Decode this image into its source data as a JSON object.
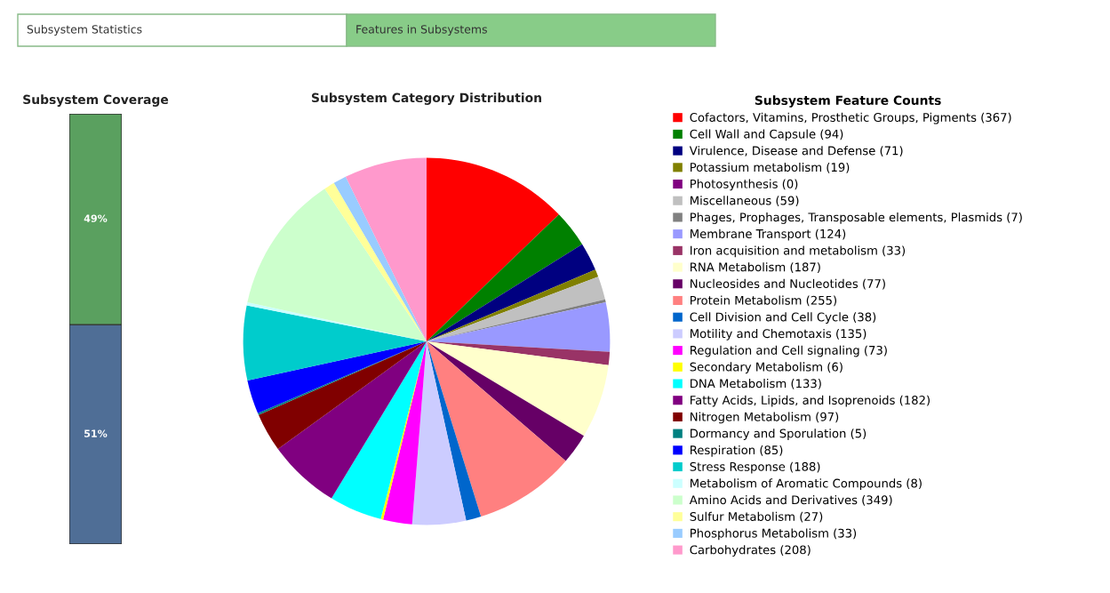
{
  "chart_data": [
    {
      "type": "bar",
      "title": "Subsystem Coverage",
      "stacked": true,
      "categories": [
        null
      ],
      "tick_labels": false,
      "series": [
        {
          "color": "#4f6e96",
          "values": [
            51
          ],
          "value_labels": [
            "51%"
          ]
        },
        {
          "color": "#5aa05f",
          "values": [
            49
          ],
          "value_labels": [
            "49%"
          ]
        }
      ],
      "annotations": [
        "Subsystem Statistics",
        "Features in Subsystems"
      ]
    },
    {
      "type": "pie",
      "title": "Subsystem Category Distribution",
      "legend_title": "Subsystem Feature Counts",
      "legend": "right",
      "categories": [
        "Cofactors, Vitamins, Prosthetic Groups, Pigments",
        "Cell Wall and Capsule",
        "Virulence, Disease and Defense",
        "Potassium metabolism",
        "Photosynthesis",
        "Miscellaneous",
        "Phages, Prophages, Transposable elements, Plasmids",
        "Membrane Transport",
        "Iron acquisition and metabolism",
        "RNA Metabolism",
        "Nucleosides and Nucleotides",
        "Protein Metabolism",
        "Cell Division and Cell Cycle",
        "Motility and Chemotaxis",
        "Regulation and Cell signaling",
        "Secondary Metabolism",
        "DNA Metabolism",
        "Fatty Acids, Lipids, and Isoprenoids",
        "Nitrogen Metabolism",
        "Dormancy and Sporulation",
        "Respiration",
        "Stress Response",
        "Metabolism of Aromatic Compounds",
        "Amino Acids and Derivatives",
        "Sulfur Metabolism",
        "Phosphorus Metabolism",
        "Carbohydrates"
      ],
      "values": [
        367,
        94,
        71,
        19,
        0,
        59,
        7,
        124,
        33,
        187,
        77,
        255,
        38,
        135,
        73,
        6,
        133,
        182,
        97,
        5,
        85,
        188,
        8,
        349,
        27,
        33,
        208
      ],
      "value_labels": [
        "(367)",
        "(94)",
        "(71)",
        "(19)",
        "(0)",
        "(59)",
        "(7)",
        "(124)",
        "(33)",
        "(187)",
        "(77)",
        "(255)",
        "(38)",
        "(135)",
        "(73)",
        "(6)",
        "(133)",
        "(182)",
        "(97)",
        "(5)",
        "(85)",
        "(188)",
        "(8)",
        "(349)",
        "(27)",
        "(33)",
        "(208)"
      ],
      "colors": [
        "#ff0000",
        "#008000",
        "#000080",
        "#808000",
        "#800080",
        "#c0c0c0",
        "#808080",
        "#9999ff",
        "#993366",
        "#ffffcc",
        "#660066",
        "#ff8080",
        "#0066cc",
        "#ccccff",
        "#ff00ff",
        "#ffff00",
        "#00ffff",
        "#800080",
        "#800000",
        "#008080",
        "#0000ff",
        "#00cccc",
        "#ccffff",
        "#ccffcc",
        "#ffff99",
        "#99ccff",
        "#ff99cc"
      ]
    }
  ]
}
